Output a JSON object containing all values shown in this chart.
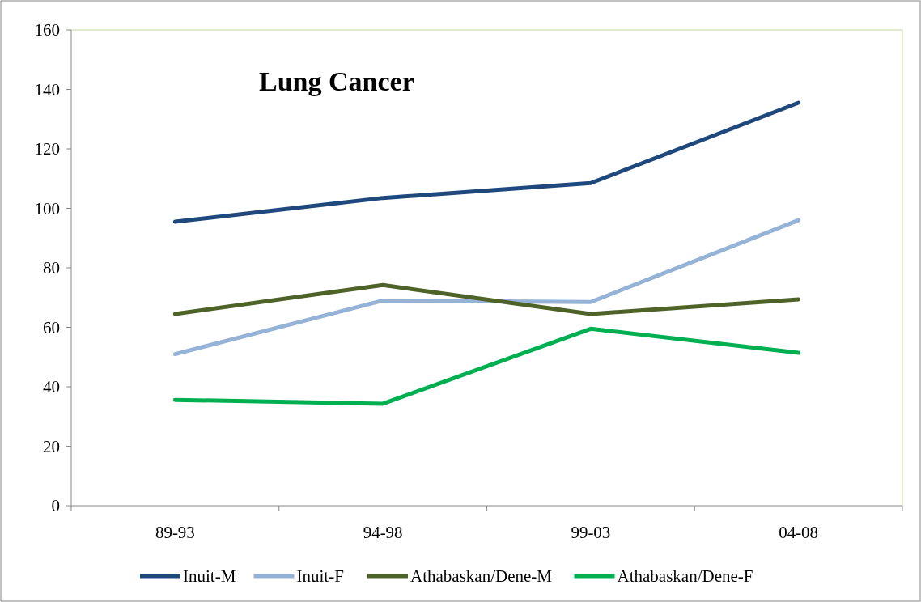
{
  "chart_data": {
    "type": "line",
    "title": "Lung Cancer",
    "categories": [
      "89-93",
      "94-98",
      "99-03",
      "04-08"
    ],
    "series": [
      {
        "name": "Inuit-M",
        "color": "#1f497d",
        "values": [
          95.5,
          103.5,
          108.5,
          135.5
        ]
      },
      {
        "name": "Inuit-F",
        "color": "#95b3d7",
        "values": [
          51,
          69,
          68.5,
          96
        ]
      },
      {
        "name": "Athabaskan/Dene-M",
        "color": "#4f6228",
        "values": [
          64.5,
          74.2,
          64.5,
          69.4
        ]
      },
      {
        "name": "Athabaskan/Dene-F",
        "color": "#00b050",
        "values": [
          35.6,
          34.3,
          59.5,
          51.4
        ]
      }
    ],
    "ylim": [
      0,
      160
    ],
    "yticks": [
      0,
      20,
      40,
      60,
      80,
      100,
      120,
      140,
      160
    ],
    "grid": false,
    "legend": "bottom",
    "marker": "none",
    "line_style": "solid"
  }
}
